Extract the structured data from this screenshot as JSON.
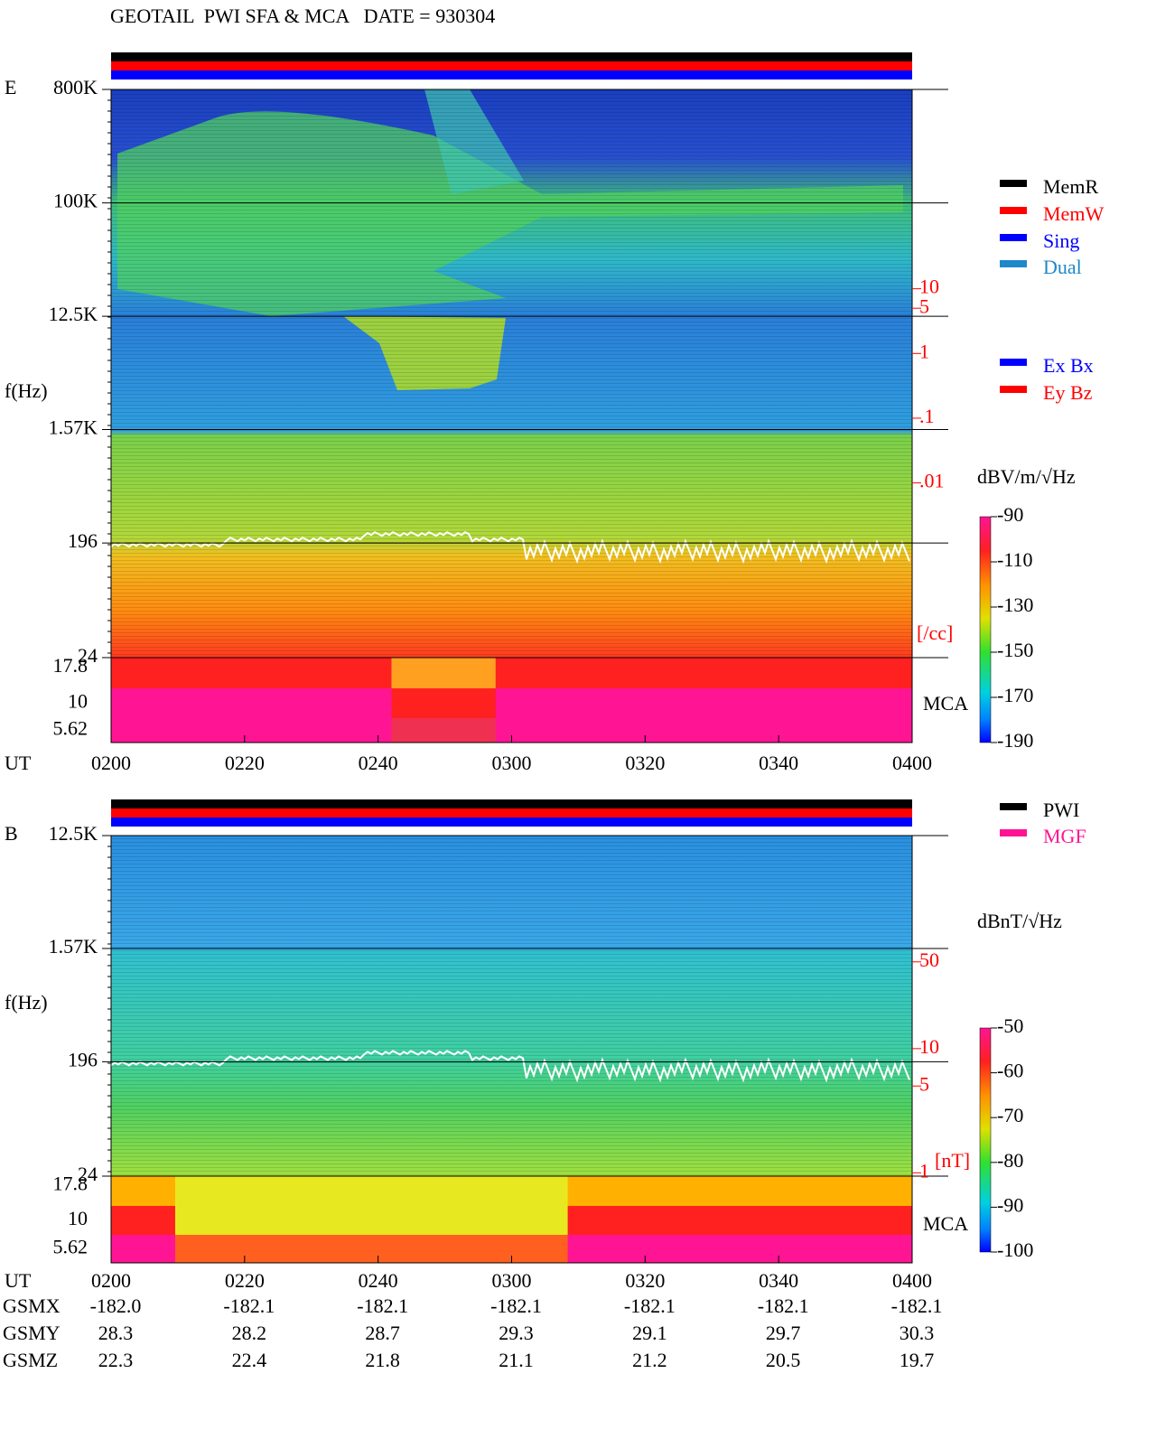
{
  "header": {
    "title": "GEOTAIL  PWI SFA & MCA   DATE = 930304"
  },
  "chart_data": [
    {
      "type": "spectrogram",
      "panel": "E",
      "ylabel": "f(Hz)",
      "xlabel": "UT",
      "ylog": true,
      "ylim": [
        24,
        800000
      ],
      "yticks": [
        24,
        196,
        {
          "value": 1570,
          "label": "1.57K"
        },
        {
          "value": 12500,
          "label": "12.5K"
        },
        {
          "value": 100000,
          "label": "100K"
        },
        {
          "value": 800000,
          "label": "800K"
        }
      ],
      "xticks": [
        "0200",
        "0220",
        "0240",
        "0300",
        "0320",
        "0340",
        "0400"
      ],
      "mca_ticks": [
        17.8,
        10,
        5.62
      ],
      "mca_label": "MCA",
      "y2log": true,
      "y2lim": [
        2e-05,
        12000
      ],
      "y2ticks": [
        10,
        5,
        1,
        {
          "value": 0.1,
          "label": ".1"
        },
        {
          "value": 0.01,
          "label": ".01"
        }
      ],
      "y2unit": "[/cc]",
      "colorbar": {
        "label": "dBV/m/√Hz",
        "lim": [
          -190,
          -90
        ],
        "ticks": [
          -90,
          -110,
          -130,
          -150,
          -170,
          -190
        ]
      },
      "legend": [
        {
          "name": "MemR",
          "color": "#000000"
        },
        {
          "name": "MemW",
          "color": "#ff0000"
        },
        {
          "name": "Sing",
          "color": "#0000ff"
        },
        {
          "name": "Dual",
          "color": "#1e88c8"
        }
      ],
      "legend2": [
        {
          "name": "Ex Bx",
          "color": "#0000ff"
        },
        {
          "name": "Ey Bz",
          "color": "#ff0000"
        }
      ]
    },
    {
      "type": "spectrogram",
      "panel": "B",
      "ylabel": "f(Hz)",
      "xlabel": "UT",
      "ylog": true,
      "ylim": [
        24,
        12500
      ],
      "yticks": [
        24,
        196,
        {
          "value": 1570,
          "label": "1.57K"
        },
        {
          "value": 12500,
          "label": "12.5K"
        }
      ],
      "xticks": [
        "0200",
        "0220",
        "0240",
        "0300",
        "0320",
        "0340",
        "0400"
      ],
      "mca_ticks": [
        17.8,
        10,
        5.62
      ],
      "mca_label": "MCA",
      "y2log": true,
      "y2lim": [
        0.94,
        520
      ],
      "y2ticks": [
        50,
        10,
        5,
        1
      ],
      "y2unit": "[nT]",
      "colorbar": {
        "label": "dBnT/√Hz",
        "lim": [
          -100,
          -50
        ],
        "ticks": [
          -50,
          -60,
          -70,
          -80,
          -90,
          -100
        ]
      },
      "legend": [
        {
          "name": "PWI",
          "color": "#000000"
        },
        {
          "name": "MGF",
          "color": "#ff1493"
        }
      ]
    }
  ],
  "orbit": {
    "rows": [
      {
        "name": "GSMX",
        "values": [
          "-182.0",
          "-182.1",
          "-182.1",
          "-182.1",
          "-182.1",
          "-182.1",
          "-182.1"
        ]
      },
      {
        "name": "GSMY",
        "values": [
          "28.3",
          "28.2",
          "28.7",
          "29.3",
          "29.1",
          "29.7",
          "30.3"
        ]
      },
      {
        "name": "GSMZ",
        "values": [
          "22.3",
          "22.4",
          "21.8",
          "21.1",
          "21.2",
          "20.5",
          "19.7"
        ]
      }
    ]
  }
}
